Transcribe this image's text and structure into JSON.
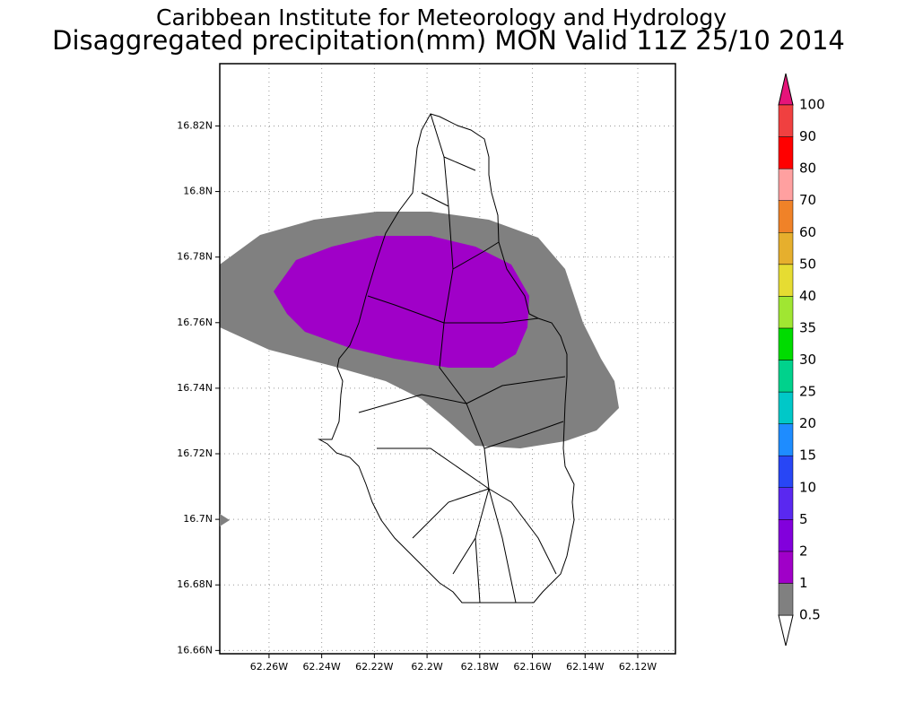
{
  "header": {
    "title": "Caribbean Institute for Meteorology and Hydrology",
    "subtitle": "Disaggregated precipitation(mm) MON Valid 11Z 25/10 2014"
  },
  "map": {
    "ylim": [
      16.659,
      16.839
    ],
    "xlim": [
      62.2787,
      62.1057
    ],
    "yticks": [
      {
        "value": 16.66,
        "label": "16.66N"
      },
      {
        "value": 16.68,
        "label": "16.68N"
      },
      {
        "value": 16.7,
        "label": "16.7N"
      },
      {
        "value": 16.72,
        "label": "16.72N"
      },
      {
        "value": 16.74,
        "label": "16.74N"
      },
      {
        "value": 16.76,
        "label": "16.76N"
      },
      {
        "value": 16.78,
        "label": "16.78N"
      },
      {
        "value": 16.8,
        "label": "16.8N"
      },
      {
        "value": 16.82,
        "label": "16.82N"
      }
    ],
    "xticks": [
      {
        "value": 62.26,
        "label": "62.26W"
      },
      {
        "value": 62.24,
        "label": "62.24W"
      },
      {
        "value": 62.22,
        "label": "62.22W"
      },
      {
        "value": 62.2,
        "label": "62.2W"
      },
      {
        "value": 62.18,
        "label": "62.18W"
      },
      {
        "value": 62.16,
        "label": "62.16W"
      },
      {
        "value": 62.14,
        "label": "62.14W"
      },
      {
        "value": 62.12,
        "label": "62.12W"
      }
    ],
    "grid": true
  },
  "colorbar": {
    "levels": [
      0.5,
      1,
      2,
      5,
      10,
      15,
      20,
      25,
      30,
      35,
      40,
      50,
      60,
      70,
      80,
      90,
      100
    ],
    "colors": [
      "#ffffff",
      "#808080",
      "#a000c8",
      "#8200dc",
      "#5a28f0",
      "#2846f5",
      "#1e8cff",
      "#00c8c8",
      "#00d28c",
      "#00dc00",
      "#a0e632",
      "#e6dc32",
      "#e6af2d",
      "#f08228",
      "#ffa0a0",
      "#ff0000",
      "#f04040",
      "#e6147a"
    ]
  }
}
